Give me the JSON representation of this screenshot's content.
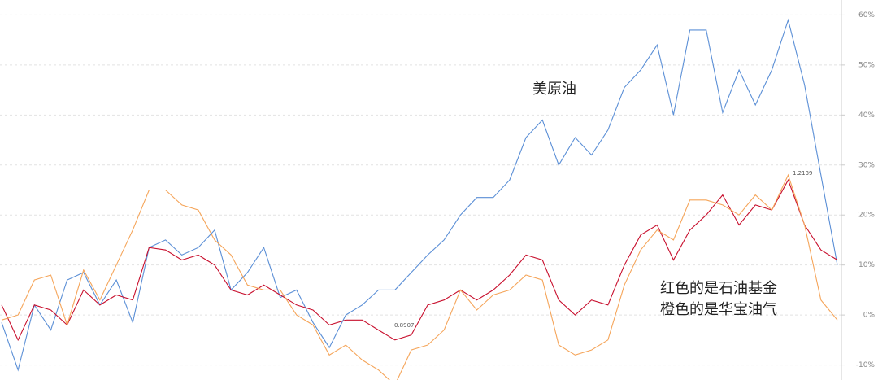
{
  "chart_data": {
    "type": "line",
    "ylim": [
      -13,
      63
    ],
    "yticks": [
      {
        "value": -10,
        "label": "-10%"
      },
      {
        "value": 0,
        "label": "0%"
      },
      {
        "value": 10,
        "label": "10%"
      },
      {
        "value": 20,
        "label": "20%"
      },
      {
        "value": 30,
        "label": "30%"
      },
      {
        "value": 40,
        "label": "40%"
      },
      {
        "value": 50,
        "label": "50%"
      },
      {
        "value": 60,
        "label": "60%"
      }
    ],
    "grid": true,
    "negative_tick_color": "#2e9b2e",
    "series": [
      {
        "name": "美原油",
        "color": "#5b8fd6",
        "values": [
          -1.5,
          -11,
          2,
          -3,
          7,
          8.5,
          2,
          7,
          -1.5,
          13.5,
          15,
          12,
          13.5,
          17,
          5,
          8.5,
          13.5,
          3.5,
          5,
          -1.5,
          -6.5,
          0,
          2,
          5,
          5,
          8.5,
          12,
          15,
          20,
          23.5,
          23.5,
          27,
          35.5,
          39,
          30,
          35.5,
          32,
          37,
          45.5,
          49,
          54,
          40,
          57,
          57,
          40.5,
          49,
          42,
          49,
          59,
          46,
          28,
          10
        ]
      },
      {
        "color": "#c8102e",
        "values": [
          2,
          -5,
          2,
          1,
          -2,
          5,
          2,
          4,
          3,
          13.5,
          13,
          11,
          12,
          10,
          5,
          4,
          6,
          4,
          2,
          1,
          -2,
          -1,
          -1,
          -3,
          -5,
          -4,
          2,
          3,
          5,
          3,
          5,
          8,
          12,
          11,
          3,
          0,
          3,
          2,
          10,
          16,
          18,
          11,
          17,
          20,
          24,
          18,
          22,
          21,
          27,
          18,
          13,
          11
        ]
      },
      {
        "color": "#f5a55a",
        "values": [
          -1,
          0,
          7,
          8,
          -2,
          9,
          3,
          10,
          17,
          25,
          25,
          22,
          21,
          15,
          12,
          6,
          5,
          5,
          0,
          -2,
          -8,
          -6,
          -9,
          -11,
          -14,
          -7,
          -6,
          -3,
          5,
          1,
          4,
          5,
          8,
          7,
          -6,
          -8,
          -7,
          -5,
          6,
          13,
          17,
          15,
          23,
          23,
          22,
          20,
          24,
          21,
          28,
          18,
          3,
          -1
        ]
      }
    ],
    "annotations": [
      "红色的是石油基金",
      "橙色的是华宝油气",
      "1.2139",
      "0.8907"
    ]
  }
}
